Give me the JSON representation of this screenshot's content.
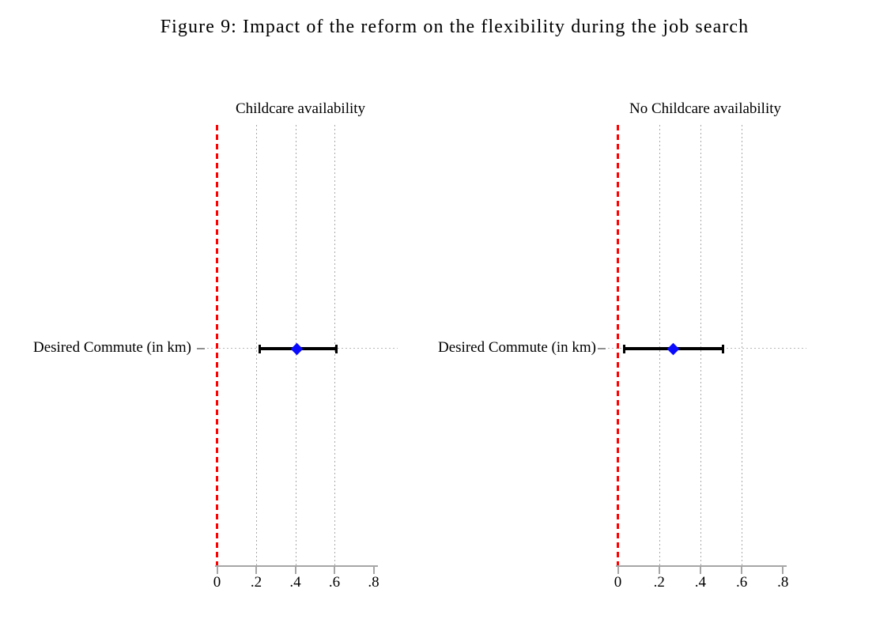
{
  "figure": {
    "title": "Figure 9: Impact of the reform on the flexibility during the job search"
  },
  "colors": {
    "reference_line": "#fe0000",
    "estimate_marker": "#0a0aff",
    "ci_bar": "#000000",
    "gridline": "#a8a8a8",
    "axis": "#a6a6a6",
    "row_dots": "#b8b8b8",
    "text": "#000000"
  },
  "chart_data": [
    {
      "type": "scatter",
      "subtype": "coefficient-plot",
      "title": "Childcare availability",
      "points": [
        {
          "label": "Desired Commute (in km)",
          "estimate": 0.41,
          "ci_low": 0.22,
          "ci_high": 0.61
        }
      ],
      "xtick_labels": [
        "0",
        ".2",
        ".4",
        ".6",
        ".8"
      ],
      "xtick_values": [
        0,
        0.2,
        0.4,
        0.6,
        0.8
      ],
      "xlim": [
        0,
        0.8
      ],
      "gridlines_x": [
        0.2,
        0.4,
        0.6
      ],
      "reference_line_x": 0,
      "grid": true,
      "legend": false
    },
    {
      "type": "scatter",
      "subtype": "coefficient-plot",
      "title": "No Childcare availability",
      "points": [
        {
          "label": "Desired Commute (in km)",
          "estimate": 0.27,
          "ci_low": 0.03,
          "ci_high": 0.51
        }
      ],
      "xtick_labels": [
        "0",
        ".2",
        ".4",
        ".6",
        ".8"
      ],
      "xtick_values": [
        0,
        0.2,
        0.4,
        0.6,
        0.8
      ],
      "xlim": [
        0,
        0.8
      ],
      "gridlines_x": [
        0.2,
        0.4,
        0.6
      ],
      "reference_line_x": 0,
      "grid": true,
      "legend": false
    }
  ]
}
